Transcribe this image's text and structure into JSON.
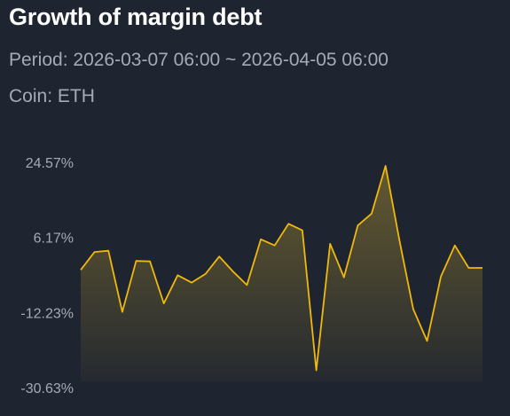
{
  "header": {
    "title": "Growth of margin debt",
    "period_label": "Period:",
    "period_value": "2026-03-07 06:00 ~ 2026-04-05 06:00",
    "coin_label": "Coin:",
    "coin_value": "ETH"
  },
  "colors": {
    "background": "#1f2530",
    "line": "#f0b90b",
    "area_top": "#6f6230",
    "area_bottom": "#262a30",
    "text_primary": "#ffffff",
    "text_secondary": "#a4abb6"
  },
  "chart_data": {
    "type": "area",
    "title": "Growth of margin debt",
    "ylim": [
      -30.63,
      24.57
    ],
    "y_ticks": [
      "24.57%",
      "6.17%",
      "-12.23%",
      "-30.63%"
    ],
    "y_tick_values": [
      24.57,
      6.17,
      -12.23,
      -30.63
    ],
    "y_unit": "%",
    "grid": false,
    "legend": "none",
    "series": [
      {
        "values": [
          -1.8,
          2.6,
          2.9,
          -12.1,
          0.4,
          0.3,
          -10.0,
          -3.1,
          -4.9,
          -2.8,
          1.5,
          -2.2,
          -5.5,
          5.7,
          4.2,
          9.5,
          7.9,
          -26.4,
          4.6,
          -3.6,
          9.1,
          12.0,
          23.7,
          5.5,
          -11.4,
          -19.2,
          -3.4,
          4.2,
          -1.3,
          -1.3
        ]
      }
    ]
  }
}
